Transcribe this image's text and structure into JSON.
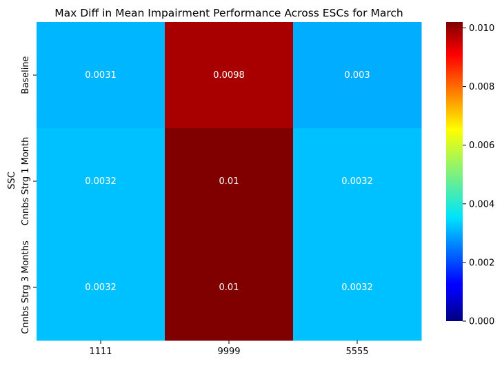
{
  "chart_data": {
    "type": "heatmap",
    "title": "Max Diff in Mean Impairment Performance Across ESCs for March",
    "ylabel": "SSC",
    "xlabel": "",
    "x_categories": [
      "1111",
      "9999",
      "5555"
    ],
    "y_categories": [
      "Baseline",
      "Cnnbs Strg 1 Month",
      "Cnnbs Strg 3 Months"
    ],
    "values": [
      [
        0.0031,
        0.0098,
        0.003
      ],
      [
        0.0032,
        0.0102,
        0.0032
      ],
      [
        0.0032,
        0.0102,
        0.0032
      ]
    ],
    "annotations": [
      [
        "0.0031",
        "0.0098",
        "0.003"
      ],
      [
        "0.0032",
        "0.01",
        "0.0032"
      ],
      [
        "0.0032",
        "0.01",
        "0.0032"
      ]
    ],
    "colormap": "jet",
    "colorbar": {
      "vmin": 0.0,
      "vmax": 0.0102,
      "ticks": [
        0.0,
        0.002,
        0.004,
        0.006,
        0.008,
        0.01
      ],
      "tick_labels": [
        "0.000",
        "0.002",
        "0.004",
        "0.006",
        "0.008",
        "0.010"
      ]
    }
  }
}
